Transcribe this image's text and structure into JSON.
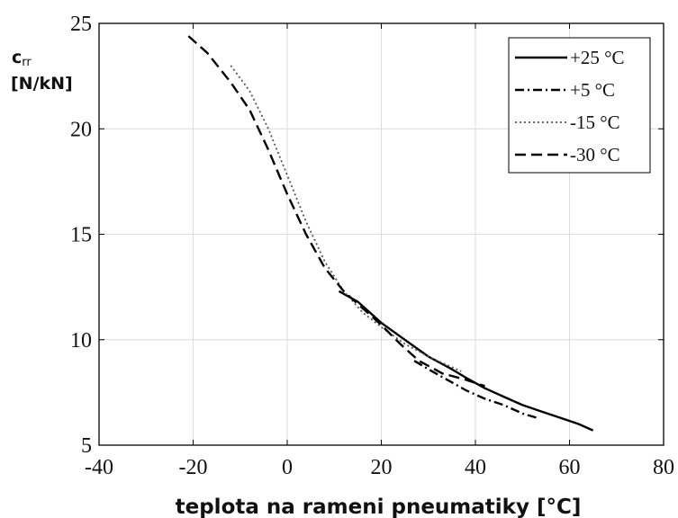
{
  "chart_data": {
    "type": "line",
    "title": "",
    "xlabel": "teplota na rameni pneumatiky [°C]",
    "ylabel": {
      "symbol": "c",
      "subscript": "rr",
      "unit": "[N/kN]"
    },
    "xlim": [
      -40,
      80
    ],
    "ylim": [
      5,
      25
    ],
    "xticks": [
      -40,
      -20,
      0,
      20,
      40,
      60,
      80
    ],
    "yticks": [
      5,
      10,
      15,
      20,
      25
    ],
    "grid": true,
    "legend_position": "top-right",
    "series": [
      {
        "name": "+25 °C",
        "style": "solid",
        "color": "#000000",
        "x": [
          11,
          15,
          20,
          25,
          30,
          35,
          38,
          42,
          46,
          50,
          54,
          58,
          62,
          65
        ],
        "y": [
          12.3,
          11.8,
          10.8,
          10.0,
          9.2,
          8.6,
          8.2,
          7.7,
          7.3,
          6.9,
          6.6,
          6.3,
          6.0,
          5.7
        ]
      },
      {
        "name": "+5 °C",
        "style": "dashdot",
        "color": "#000000",
        "x": [
          27,
          30,
          34,
          38,
          42,
          46,
          50,
          53
        ],
        "y": [
          9.0,
          8.6,
          8.1,
          7.6,
          7.2,
          6.9,
          6.5,
          6.3
        ]
      },
      {
        "name": "-15 °C",
        "style": "dotted",
        "color": "#555555",
        "x": [
          -12,
          -8,
          -4,
          0,
          4,
          8,
          12,
          16,
          20,
          25,
          30,
          35,
          37
        ],
        "y": [
          23.0,
          21.8,
          20.0,
          17.8,
          15.6,
          13.7,
          12.3,
          11.3,
          10.6,
          9.8,
          9.2,
          8.7,
          8.5
        ]
      },
      {
        "name": "-30 °C",
        "style": "dashed",
        "color": "#000000",
        "x": [
          -21,
          -17,
          -12,
          -8,
          -4,
          0,
          4,
          8,
          12,
          16,
          20,
          24,
          28,
          33,
          38,
          42
        ],
        "y": [
          24.4,
          23.6,
          22.2,
          20.9,
          19.0,
          16.9,
          15.0,
          13.4,
          12.3,
          11.5,
          10.7,
          9.8,
          9.0,
          8.4,
          8.1,
          7.8
        ]
      }
    ]
  }
}
